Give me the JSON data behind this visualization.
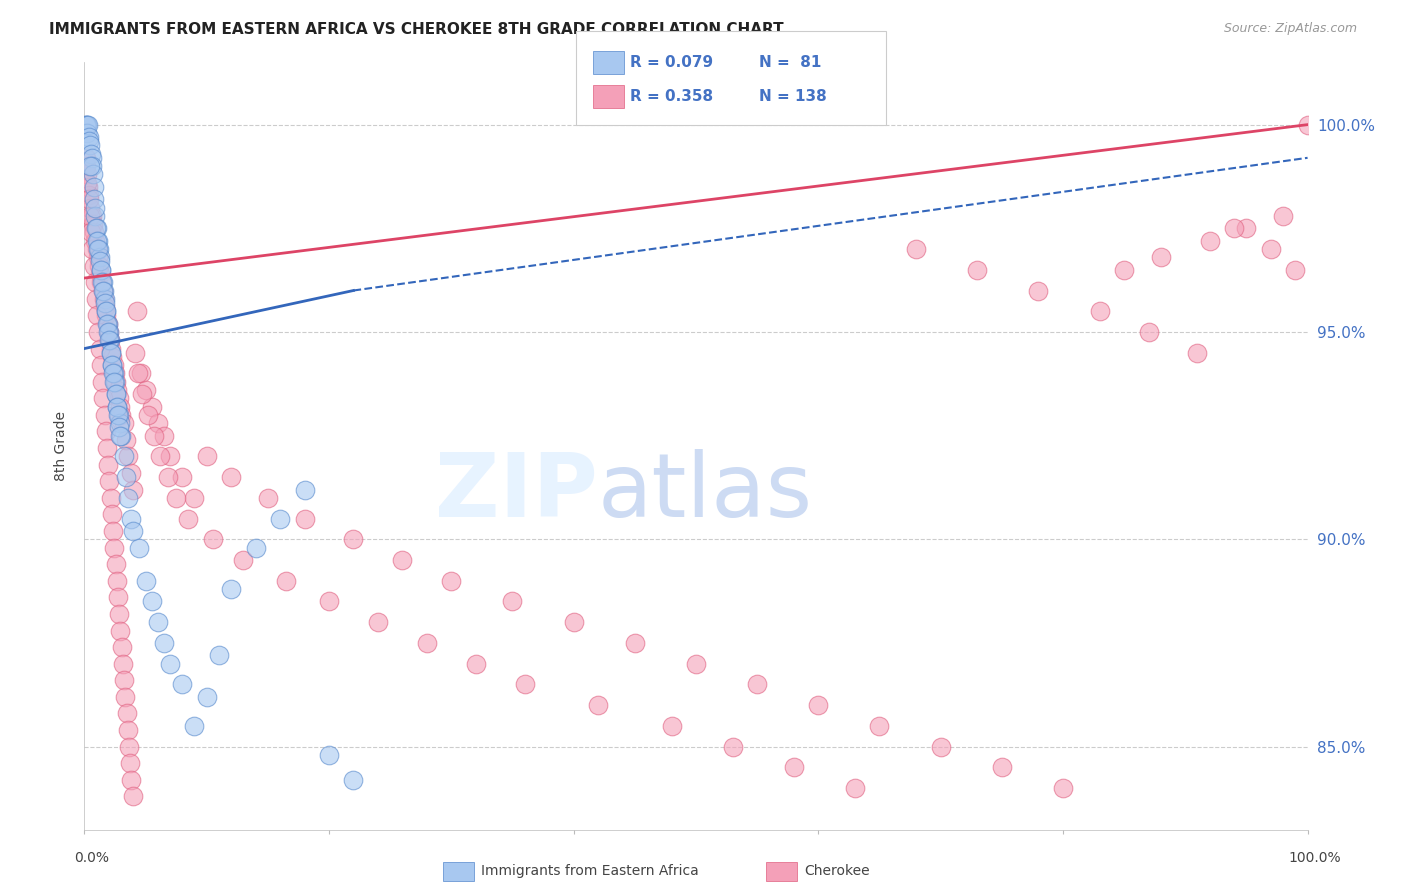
{
  "title": "IMMIGRANTS FROM EASTERN AFRICA VS CHEROKEE 8TH GRADE CORRELATION CHART",
  "source": "Source: ZipAtlas.com",
  "xlim": [
    0.0,
    100.0
  ],
  "ylim": [
    83.0,
    101.5
  ],
  "legend_blue_R": "0.079",
  "legend_blue_N": "81",
  "legend_pink_R": "0.358",
  "legend_pink_N": "138",
  "legend_label_blue": "Immigrants from Eastern Africa",
  "legend_label_pink": "Cherokee",
  "blue_color": "#a8c8f0",
  "pink_color": "#f4a0b8",
  "blue_edge_color": "#5588cc",
  "pink_edge_color": "#e06080",
  "blue_line_color": "#3366bb",
  "pink_line_color": "#dd4466",
  "ytick_positions": [
    85.0,
    90.0,
    95.0,
    100.0
  ],
  "ytick_labels": [
    "85.0%",
    "90.0%",
    "95.0%",
    "100.0%"
  ],
  "blue_scatter_x": [
    0.1,
    0.15,
    0.2,
    0.25,
    0.3,
    0.35,
    0.4,
    0.5,
    0.55,
    0.6,
    0.65,
    0.7,
    0.75,
    0.8,
    0.9,
    1.0,
    1.1,
    1.2,
    1.3,
    1.4,
    1.5,
    1.6,
    1.7,
    1.8,
    1.9,
    2.0,
    2.1,
    2.2,
    2.3,
    2.4,
    2.5,
    2.6,
    2.7,
    2.8,
    2.9,
    3.0,
    3.2,
    3.4,
    3.6,
    3.8,
    4.0,
    4.5,
    5.0,
    5.5,
    6.0,
    6.5,
    7.0,
    8.0,
    9.0,
    10.0,
    11.0,
    12.0,
    14.0,
    16.0,
    18.0,
    20.0,
    22.0,
    0.45,
    0.85,
    0.95,
    1.05,
    1.15,
    1.25,
    1.35,
    1.45,
    1.55,
    1.65,
    1.75,
    1.85,
    1.95,
    2.05,
    2.15,
    2.25,
    2.35,
    2.45,
    2.55,
    2.65,
    2.75,
    2.85,
    2.95
  ],
  "blue_scatter_y": [
    100.0,
    100.0,
    100.0,
    99.8,
    100.0,
    99.7,
    99.6,
    99.5,
    99.3,
    99.2,
    99.0,
    98.8,
    98.5,
    98.2,
    97.8,
    97.5,
    97.2,
    97.0,
    96.8,
    96.5,
    96.2,
    96.0,
    95.8,
    95.5,
    95.2,
    95.0,
    94.8,
    94.5,
    94.2,
    94.0,
    93.8,
    93.5,
    93.2,
    93.0,
    92.8,
    92.5,
    92.0,
    91.5,
    91.0,
    90.5,
    90.2,
    89.8,
    89.0,
    88.5,
    88.0,
    87.5,
    87.0,
    86.5,
    85.5,
    86.2,
    87.2,
    88.8,
    89.8,
    90.5,
    91.2,
    84.8,
    84.2,
    99.0,
    98.0,
    97.5,
    97.2,
    97.0,
    96.7,
    96.5,
    96.2,
    96.0,
    95.7,
    95.5,
    95.2,
    95.0,
    94.8,
    94.5,
    94.2,
    94.0,
    93.8,
    93.5,
    93.2,
    93.0,
    92.7,
    92.5
  ],
  "pink_scatter_x": [
    0.1,
    0.2,
    0.3,
    0.4,
    0.5,
    0.6,
    0.7,
    0.8,
    0.9,
    1.0,
    1.1,
    1.2,
    1.3,
    1.4,
    1.5,
    1.6,
    1.7,
    1.8,
    1.9,
    2.0,
    2.1,
    2.2,
    2.3,
    2.4,
    2.5,
    2.6,
    2.7,
    2.8,
    2.9,
    3.0,
    3.2,
    3.4,
    3.6,
    3.8,
    4.0,
    4.3,
    4.6,
    5.0,
    5.5,
    6.0,
    6.5,
    7.0,
    8.0,
    9.0,
    10.0,
    12.0,
    15.0,
    18.0,
    22.0,
    26.0,
    30.0,
    35.0,
    40.0,
    45.0,
    50.0,
    55.0,
    60.0,
    65.0,
    70.0,
    75.0,
    80.0,
    85.0,
    88.0,
    92.0,
    95.0,
    98.0,
    100.0,
    0.15,
    0.25,
    0.35,
    0.45,
    0.55,
    0.65,
    0.75,
    0.85,
    0.95,
    1.05,
    1.15,
    1.25,
    1.35,
    1.45,
    1.55,
    1.65,
    1.75,
    1.85,
    1.95,
    2.05,
    2.15,
    2.25,
    2.35,
    2.45,
    2.55,
    2.65,
    2.75,
    2.85,
    2.95,
    3.05,
    3.15,
    3.25,
    3.35,
    3.45,
    3.55,
    3.65,
    3.75,
    3.85,
    3.95,
    4.1,
    4.4,
    4.7,
    5.2,
    5.7,
    6.2,
    6.8,
    7.5,
    8.5,
    10.5,
    13.0,
    16.5,
    20.0,
    24.0,
    28.0,
    32.0,
    36.0,
    42.0,
    48.0,
    53.0,
    58.0,
    63.0,
    68.0,
    73.0,
    78.0,
    83.0,
    87.0,
    91.0,
    94.0,
    97.0,
    99.0
  ],
  "pink_scatter_y": [
    99.2,
    98.8,
    98.5,
    98.3,
    98.0,
    97.8,
    97.6,
    97.4,
    97.2,
    97.0,
    96.8,
    96.6,
    96.4,
    96.2,
    96.0,
    95.8,
    95.6,
    95.4,
    95.2,
    95.0,
    94.8,
    94.6,
    94.4,
    94.2,
    94.0,
    93.8,
    93.6,
    93.4,
    93.2,
    93.0,
    92.8,
    92.4,
    92.0,
    91.6,
    91.2,
    95.5,
    94.0,
    93.6,
    93.2,
    92.8,
    92.5,
    92.0,
    91.5,
    91.0,
    92.0,
    91.5,
    91.0,
    90.5,
    90.0,
    89.5,
    89.0,
    88.5,
    88.0,
    87.5,
    87.0,
    86.5,
    86.0,
    85.5,
    85.0,
    84.5,
    84.0,
    96.5,
    96.8,
    97.2,
    97.5,
    97.8,
    100.0,
    99.0,
    98.6,
    98.2,
    97.8,
    97.4,
    97.0,
    96.6,
    96.2,
    95.8,
    95.4,
    95.0,
    94.6,
    94.2,
    93.8,
    93.4,
    93.0,
    92.6,
    92.2,
    91.8,
    91.4,
    91.0,
    90.6,
    90.2,
    89.8,
    89.4,
    89.0,
    88.6,
    88.2,
    87.8,
    87.4,
    87.0,
    86.6,
    86.2,
    85.8,
    85.4,
    85.0,
    84.6,
    84.2,
    83.8,
    94.5,
    94.0,
    93.5,
    93.0,
    92.5,
    92.0,
    91.5,
    91.0,
    90.5,
    90.0,
    89.5,
    89.0,
    88.5,
    88.0,
    87.5,
    87.0,
    86.5,
    86.0,
    85.5,
    85.0,
    84.5,
    84.0,
    97.0,
    96.5,
    96.0,
    95.5,
    95.0,
    94.5,
    97.5,
    97.0,
    96.5
  ],
  "blue_line_x0": 0.0,
  "blue_line_x1": 22.0,
  "blue_line_y0": 94.6,
  "blue_line_y1": 96.0,
  "blue_dash_x0": 22.0,
  "blue_dash_x1": 100.0,
  "blue_dash_y0": 96.0,
  "blue_dash_y1": 99.2,
  "pink_line_x0": 0.0,
  "pink_line_x1": 100.0,
  "pink_line_y0": 96.3,
  "pink_line_y1": 100.0
}
